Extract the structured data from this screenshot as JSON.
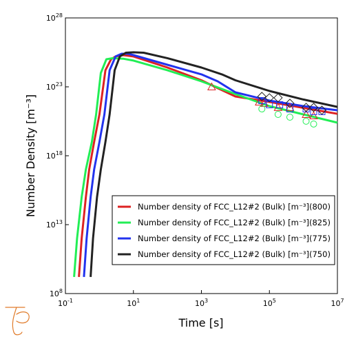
{
  "chart_data": {
    "type": "line",
    "title": "",
    "xlabel": "Time [s]",
    "ylabel": "Number Density [m⁻³]",
    "x_scale": "log",
    "y_scale": "log",
    "xlim": [
      0.1,
      10000000
    ],
    "ylim": [
      100000000,
      1e+28
    ],
    "x_ticks": [
      {
        "base": "10",
        "exp": "-1"
      },
      {
        "base": "10",
        "exp": "1"
      },
      {
        "base": "10",
        "exp": "3"
      },
      {
        "base": "10",
        "exp": "5"
      },
      {
        "base": "10",
        "exp": "7"
      }
    ],
    "y_ticks": [
      {
        "base": "10",
        "exp": "8"
      },
      {
        "base": "10",
        "exp": "13"
      },
      {
        "base": "10",
        "exp": "18"
      },
      {
        "base": "10",
        "exp": "23"
      },
      {
        "base": "10",
        "exp": "28"
      }
    ],
    "grid": false,
    "legend_position": "bottom-right",
    "series": [
      {
        "name": "Number density of FCC_L12#2 (Bulk) [m⁻³](800)",
        "color": "#dd2222",
        "marker": "triangle",
        "x": [
          0.25,
          0.3,
          0.4,
          0.5,
          0.7,
          1.0,
          1.5,
          2.2,
          3,
          5,
          10,
          100,
          1000,
          3000,
          10000,
          100000,
          1000000,
          10000000
        ],
        "y": [
          1600000000.0,
          1000000000000.0,
          1000000000000000.0,
          1e+17,
          1e+19,
          1e+21,
          1.6e+24,
          1e+25,
          1.6e+25,
          2e+25,
          1.6e+25,
          2.5e+24,
          3e+23,
          8e+22,
          2e+22,
          8e+21,
          3e+21,
          1.1e+21
        ],
        "markers_x": [
          2000,
          50000,
          70000,
          180000,
          400000,
          1200000,
          2000000
        ],
        "markers_y": [
          1e+23,
          7.9e+21,
          6.3e+21,
          3.2e+21,
          3.2e+21,
          1e+21,
          7.9e+20
        ]
      },
      {
        "name": "Number density of FCC_L12#2 (Bulk) [m⁻³](825)",
        "color": "#22ee55",
        "marker": "circle",
        "x": [
          0.18,
          0.22,
          0.3,
          0.4,
          0.6,
          0.8,
          1.1,
          1.6,
          2.5,
          5,
          10,
          100,
          1000,
          10000,
          100000,
          1000000,
          10000000
        ],
        "y": [
          1600000000.0,
          1000000000000.0,
          1000000000000000.0,
          1e+17,
          1e+19,
          1e+21,
          1e+24,
          1e+25,
          1.2e+25,
          1.1e+25,
          8e+24,
          1.6e+24,
          2.5e+23,
          3e+22,
          4e+21,
          1e+21,
          2.5e+20
        ],
        "markers_x": [
          60000,
          180000,
          400000,
          1200000,
          2000000
        ],
        "markers_y": [
          2.5e+21,
          1e+21,
          6.3e+20,
          3.2e+20,
          2e+20
        ]
      },
      {
        "name": "Number density of FCC_L12#2 (Bulk) [m⁻³](775)",
        "color": "#2233ee",
        "marker": "square",
        "x": [
          0.35,
          0.42,
          0.55,
          0.7,
          1.0,
          1.4,
          2.0,
          3.0,
          4.5,
          7,
          10,
          100,
          1000,
          3000,
          10000,
          100000,
          1000000,
          10000000
        ],
        "y": [
          1600000000.0,
          1000000000000.0,
          1000000000000000.0,
          1e+17,
          1e+19,
          1e+21,
          1.6e+24,
          1.6e+25,
          2.5e+25,
          2.5e+25,
          2e+25,
          4e+24,
          8e+23,
          2.5e+23,
          4e+22,
          1e+22,
          4e+21,
          2e+21
        ],
        "markers_x": [
          60000,
          100000,
          200000,
          400000,
          1200000,
          2000000,
          3500000
        ],
        "markers_y": [
          1e+22,
          5e+21,
          5e+21,
          2.5e+21,
          2.5e+21,
          1.6e+21,
          1.6e+21
        ]
      },
      {
        "name": "Number density of FCC_L12#2 (Bulk) [m⁻³](750)",
        "color": "#222222",
        "marker": "diamond",
        "x": [
          0.55,
          0.65,
          0.85,
          1.1,
          1.5,
          2.0,
          2.8,
          4.0,
          6,
          10,
          20,
          100,
          1000,
          4000,
          10000,
          100000,
          1000000,
          10000000
        ],
        "y": [
          1600000000.0,
          1000000000000.0,
          1000000000000000.0,
          1e+17,
          1e+19,
          1e+21,
          1.6e+24,
          1.6e+25,
          3e+25,
          3.2e+25,
          3e+25,
          1.2e+25,
          2.5e+24,
          8e+23,
          3e+23,
          5e+22,
          1.2e+22,
          3.5e+21
        ],
        "markers_x": [
          60000,
          100000,
          180000,
          400000,
          1200000,
          2000000,
          3500000
        ],
        "markers_y": [
          2e+22,
          1.6e+22,
          1.6e+22,
          6.3e+21,
          3.2e+21,
          3.2e+21,
          2e+21
        ]
      }
    ]
  }
}
